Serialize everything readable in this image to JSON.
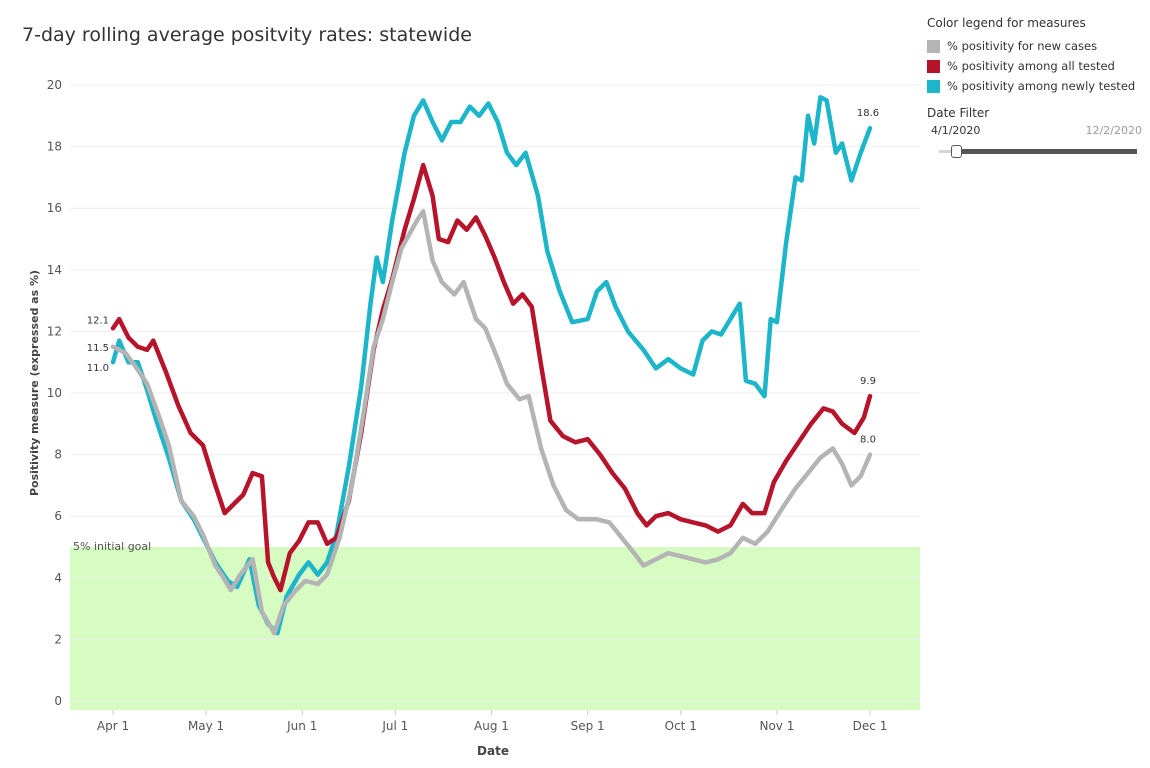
{
  "chart_data": {
    "type": "line",
    "title": "7-day rolling average positvity rates: statewide",
    "xlabel": "Date",
    "ylabel": "Positivity measure (expressed as %)",
    "ylim": [
      0,
      20
    ],
    "yticks": [
      0,
      2,
      4,
      6,
      8,
      10,
      12,
      14,
      16,
      18,
      20
    ],
    "xlim": [
      "2020-03-27",
      "2020-12-07"
    ],
    "xticks": [
      {
        "label": "Apr 1",
        "date": "2020-04-01"
      },
      {
        "label": "May 1",
        "date": "2020-05-01"
      },
      {
        "label": "Jun 1",
        "date": "2020-06-01"
      },
      {
        "label": "Jul 1",
        "date": "2020-07-01"
      },
      {
        "label": "Aug 1",
        "date": "2020-08-01"
      },
      {
        "label": "Sep 1",
        "date": "2020-09-01"
      },
      {
        "label": "Oct 1",
        "date": "2020-10-01"
      },
      {
        "label": "Nov 1",
        "date": "2020-11-01"
      },
      {
        "label": "Dec 1",
        "date": "2020-12-01"
      }
    ],
    "grid": true,
    "goal_band": {
      "label": "5% initial goal",
      "from": 0,
      "to": 5,
      "color": "#d6fcc2"
    },
    "series": [
      {
        "name": "% positivity for new cases",
        "color": "#b4b4b4",
        "start_label": "11.5",
        "end_label": "8.0",
        "points": [
          [
            "2020-04-01",
            11.5
          ],
          [
            "2020-04-05",
            11.3
          ],
          [
            "2020-04-08",
            10.9
          ],
          [
            "2020-04-12",
            10.3
          ],
          [
            "2020-04-16",
            9.2
          ],
          [
            "2020-04-19",
            8.3
          ],
          [
            "2020-04-23",
            6.5
          ],
          [
            "2020-04-27",
            6.0
          ],
          [
            "2020-04-30",
            5.4
          ],
          [
            "2020-05-04",
            4.4
          ],
          [
            "2020-05-06",
            4.1
          ],
          [
            "2020-05-09",
            3.6
          ],
          [
            "2020-05-12",
            4.1
          ],
          [
            "2020-05-16",
            4.6
          ],
          [
            "2020-05-19",
            2.9
          ],
          [
            "2020-05-23",
            2.2
          ],
          [
            "2020-05-26",
            3.1
          ],
          [
            "2020-05-30",
            3.6
          ],
          [
            "2020-06-02",
            3.9
          ],
          [
            "2020-06-06",
            3.8
          ],
          [
            "2020-06-09",
            4.1
          ],
          [
            "2020-06-13",
            5.3
          ],
          [
            "2020-06-17",
            7.0
          ],
          [
            "2020-06-21",
            9.5
          ],
          [
            "2020-06-24",
            11.5
          ],
          [
            "2020-06-27",
            12.4
          ],
          [
            "2020-06-30",
            13.6
          ],
          [
            "2020-07-03",
            14.7
          ],
          [
            "2020-07-08",
            15.6
          ],
          [
            "2020-07-10",
            15.9
          ],
          [
            "2020-07-13",
            14.3
          ],
          [
            "2020-07-16",
            13.6
          ],
          [
            "2020-07-20",
            13.2
          ],
          [
            "2020-07-23",
            13.6
          ],
          [
            "2020-07-27",
            12.4
          ],
          [
            "2020-07-30",
            12.1
          ],
          [
            "2020-08-03",
            11.1
          ],
          [
            "2020-08-06",
            10.3
          ],
          [
            "2020-08-10",
            9.8
          ],
          [
            "2020-08-13",
            9.9
          ],
          [
            "2020-08-17",
            8.2
          ],
          [
            "2020-08-21",
            7.0
          ],
          [
            "2020-08-25",
            6.2
          ],
          [
            "2020-08-29",
            5.9
          ],
          [
            "2020-09-04",
            5.9
          ],
          [
            "2020-09-08",
            5.8
          ],
          [
            "2020-09-12",
            5.3
          ],
          [
            "2020-09-16",
            4.8
          ],
          [
            "2020-09-19",
            4.4
          ],
          [
            "2020-09-23",
            4.6
          ],
          [
            "2020-09-27",
            4.8
          ],
          [
            "2020-10-01",
            4.7
          ],
          [
            "2020-10-05",
            4.6
          ],
          [
            "2020-10-09",
            4.5
          ],
          [
            "2020-10-13",
            4.6
          ],
          [
            "2020-10-17",
            4.8
          ],
          [
            "2020-10-21",
            5.3
          ],
          [
            "2020-10-25",
            5.1
          ],
          [
            "2020-10-29",
            5.5
          ],
          [
            "2020-11-03",
            6.3
          ],
          [
            "2020-11-07",
            6.9
          ],
          [
            "2020-11-11",
            7.4
          ],
          [
            "2020-11-15",
            7.9
          ],
          [
            "2020-11-19",
            8.2
          ],
          [
            "2020-11-22",
            7.7
          ],
          [
            "2020-11-25",
            7.0
          ],
          [
            "2020-11-28",
            7.3
          ],
          [
            "2020-12-01",
            8.0
          ]
        ]
      },
      {
        "name": "% positivity among all tested",
        "color": "#b6142a",
        "start_label": "12.1",
        "end_label": "9.9",
        "points": [
          [
            "2020-04-01",
            12.1
          ],
          [
            "2020-04-03",
            12.4
          ],
          [
            "2020-04-06",
            11.8
          ],
          [
            "2020-04-09",
            11.5
          ],
          [
            "2020-04-12",
            11.4
          ],
          [
            "2020-04-14",
            11.7
          ],
          [
            "2020-04-18",
            10.7
          ],
          [
            "2020-04-22",
            9.6
          ],
          [
            "2020-04-26",
            8.7
          ],
          [
            "2020-04-30",
            8.3
          ],
          [
            "2020-05-04",
            7.0
          ],
          [
            "2020-05-07",
            6.1
          ],
          [
            "2020-05-10",
            6.4
          ],
          [
            "2020-05-13",
            6.7
          ],
          [
            "2020-05-16",
            7.4
          ],
          [
            "2020-05-19",
            7.3
          ],
          [
            "2020-05-21",
            4.5
          ],
          [
            "2020-05-23",
            4.0
          ],
          [
            "2020-05-25",
            3.6
          ],
          [
            "2020-05-28",
            4.8
          ],
          [
            "2020-05-31",
            5.2
          ],
          [
            "2020-06-03",
            5.8
          ],
          [
            "2020-06-06",
            5.8
          ],
          [
            "2020-06-09",
            5.1
          ],
          [
            "2020-06-12",
            5.3
          ],
          [
            "2020-06-16",
            6.5
          ],
          [
            "2020-06-20",
            8.7
          ],
          [
            "2020-06-24",
            11.4
          ],
          [
            "2020-06-27",
            12.7
          ],
          [
            "2020-06-30",
            13.7
          ],
          [
            "2020-07-04",
            15.3
          ],
          [
            "2020-07-07",
            16.3
          ],
          [
            "2020-07-10",
            17.4
          ],
          [
            "2020-07-13",
            16.4
          ],
          [
            "2020-07-15",
            15.0
          ],
          [
            "2020-07-18",
            14.9
          ],
          [
            "2020-07-21",
            15.6
          ],
          [
            "2020-07-24",
            15.3
          ],
          [
            "2020-07-27",
            15.7
          ],
          [
            "2020-07-30",
            15.1
          ],
          [
            "2020-08-02",
            14.4
          ],
          [
            "2020-08-05",
            13.6
          ],
          [
            "2020-08-08",
            12.9
          ],
          [
            "2020-08-11",
            13.2
          ],
          [
            "2020-08-14",
            12.8
          ],
          [
            "2020-08-17",
            10.9
          ],
          [
            "2020-08-20",
            9.1
          ],
          [
            "2020-08-24",
            8.6
          ],
          [
            "2020-08-28",
            8.4
          ],
          [
            "2020-09-01",
            8.5
          ],
          [
            "2020-09-05",
            8.0
          ],
          [
            "2020-09-09",
            7.4
          ],
          [
            "2020-09-13",
            6.9
          ],
          [
            "2020-09-17",
            6.1
          ],
          [
            "2020-09-20",
            5.7
          ],
          [
            "2020-09-23",
            6.0
          ],
          [
            "2020-09-27",
            6.1
          ],
          [
            "2020-10-01",
            5.9
          ],
          [
            "2020-10-05",
            5.8
          ],
          [
            "2020-10-09",
            5.7
          ],
          [
            "2020-10-13",
            5.5
          ],
          [
            "2020-10-17",
            5.7
          ],
          [
            "2020-10-21",
            6.4
          ],
          [
            "2020-10-24",
            6.1
          ],
          [
            "2020-10-28",
            6.1
          ],
          [
            "2020-10-31",
            7.1
          ],
          [
            "2020-11-04",
            7.8
          ],
          [
            "2020-11-08",
            8.4
          ],
          [
            "2020-11-12",
            9.0
          ],
          [
            "2020-11-16",
            9.5
          ],
          [
            "2020-11-19",
            9.4
          ],
          [
            "2020-11-22",
            9.0
          ],
          [
            "2020-11-26",
            8.7
          ],
          [
            "2020-11-29",
            9.2
          ],
          [
            "2020-12-01",
            9.9
          ]
        ]
      },
      {
        "name": "% positivity among newly tested",
        "color": "#1db5c9",
        "start_label": "11.0",
        "end_label": "18.6",
        "points": [
          [
            "2020-04-01",
            11.0
          ],
          [
            "2020-04-03",
            11.7
          ],
          [
            "2020-04-06",
            11.0
          ],
          [
            "2020-04-09",
            11.0
          ],
          [
            "2020-04-12",
            10.1
          ],
          [
            "2020-04-15",
            9.1
          ],
          [
            "2020-04-19",
            7.9
          ],
          [
            "2020-04-23",
            6.5
          ],
          [
            "2020-04-27",
            5.9
          ],
          [
            "2020-04-30",
            5.3
          ],
          [
            "2020-05-04",
            4.5
          ],
          [
            "2020-05-08",
            3.9
          ],
          [
            "2020-05-11",
            3.7
          ],
          [
            "2020-05-15",
            4.6
          ],
          [
            "2020-05-18",
            3.1
          ],
          [
            "2020-05-21",
            2.5
          ],
          [
            "2020-05-24",
            2.2
          ],
          [
            "2020-05-27",
            3.4
          ],
          [
            "2020-05-31",
            4.1
          ],
          [
            "2020-06-03",
            4.5
          ],
          [
            "2020-06-06",
            4.1
          ],
          [
            "2020-06-09",
            4.5
          ],
          [
            "2020-06-12",
            5.4
          ],
          [
            "2020-06-16",
            7.6
          ],
          [
            "2020-06-20",
            10.2
          ],
          [
            "2020-06-23",
            12.9
          ],
          [
            "2020-06-25",
            14.4
          ],
          [
            "2020-06-27",
            13.6
          ],
          [
            "2020-06-30",
            15.6
          ],
          [
            "2020-07-04",
            17.8
          ],
          [
            "2020-07-07",
            19.0
          ],
          [
            "2020-07-10",
            19.5
          ],
          [
            "2020-07-13",
            18.8
          ],
          [
            "2020-07-16",
            18.2
          ],
          [
            "2020-07-19",
            18.8
          ],
          [
            "2020-07-22",
            18.8
          ],
          [
            "2020-07-25",
            19.3
          ],
          [
            "2020-07-28",
            19.0
          ],
          [
            "2020-07-31",
            19.4
          ],
          [
            "2020-08-03",
            18.8
          ],
          [
            "2020-08-06",
            17.8
          ],
          [
            "2020-08-09",
            17.4
          ],
          [
            "2020-08-12",
            17.8
          ],
          [
            "2020-08-16",
            16.4
          ],
          [
            "2020-08-19",
            14.6
          ],
          [
            "2020-08-23",
            13.3
          ],
          [
            "2020-08-27",
            12.3
          ],
          [
            "2020-09-01",
            12.4
          ],
          [
            "2020-09-04",
            13.3
          ],
          [
            "2020-09-07",
            13.6
          ],
          [
            "2020-09-10",
            12.8
          ],
          [
            "2020-09-14",
            12.0
          ],
          [
            "2020-09-19",
            11.4
          ],
          [
            "2020-09-23",
            10.8
          ],
          [
            "2020-09-27",
            11.1
          ],
          [
            "2020-10-01",
            10.8
          ],
          [
            "2020-10-05",
            10.6
          ],
          [
            "2020-10-08",
            11.7
          ],
          [
            "2020-10-11",
            12.0
          ],
          [
            "2020-10-14",
            11.9
          ],
          [
            "2020-10-17",
            12.4
          ],
          [
            "2020-10-20",
            12.9
          ],
          [
            "2020-10-22",
            10.4
          ],
          [
            "2020-10-25",
            10.3
          ],
          [
            "2020-10-28",
            9.9
          ],
          [
            "2020-10-30",
            12.4
          ],
          [
            "2020-11-01",
            12.3
          ],
          [
            "2020-11-04",
            14.9
          ],
          [
            "2020-11-07",
            17.0
          ],
          [
            "2020-11-09",
            16.9
          ],
          [
            "2020-11-11",
            19.0
          ],
          [
            "2020-11-13",
            18.1
          ],
          [
            "2020-11-15",
            19.6
          ],
          [
            "2020-11-17",
            19.5
          ],
          [
            "2020-11-20",
            17.8
          ],
          [
            "2020-11-22",
            18.1
          ],
          [
            "2020-11-25",
            16.9
          ],
          [
            "2020-11-28",
            17.8
          ],
          [
            "2020-12-01",
            18.6
          ]
        ]
      }
    ]
  },
  "legend": {
    "title": "Color legend for measures",
    "items": [
      {
        "label": "% positivity for new cases",
        "color": "#b4b4b4"
      },
      {
        "label": "% positivity among all tested",
        "color": "#b6142a"
      },
      {
        "label": "% positivity among newly tested",
        "color": "#1db5c9"
      }
    ]
  },
  "date_filter": {
    "title": "Date Filter",
    "start": "4/1/2020",
    "end": "12/2/2020"
  }
}
